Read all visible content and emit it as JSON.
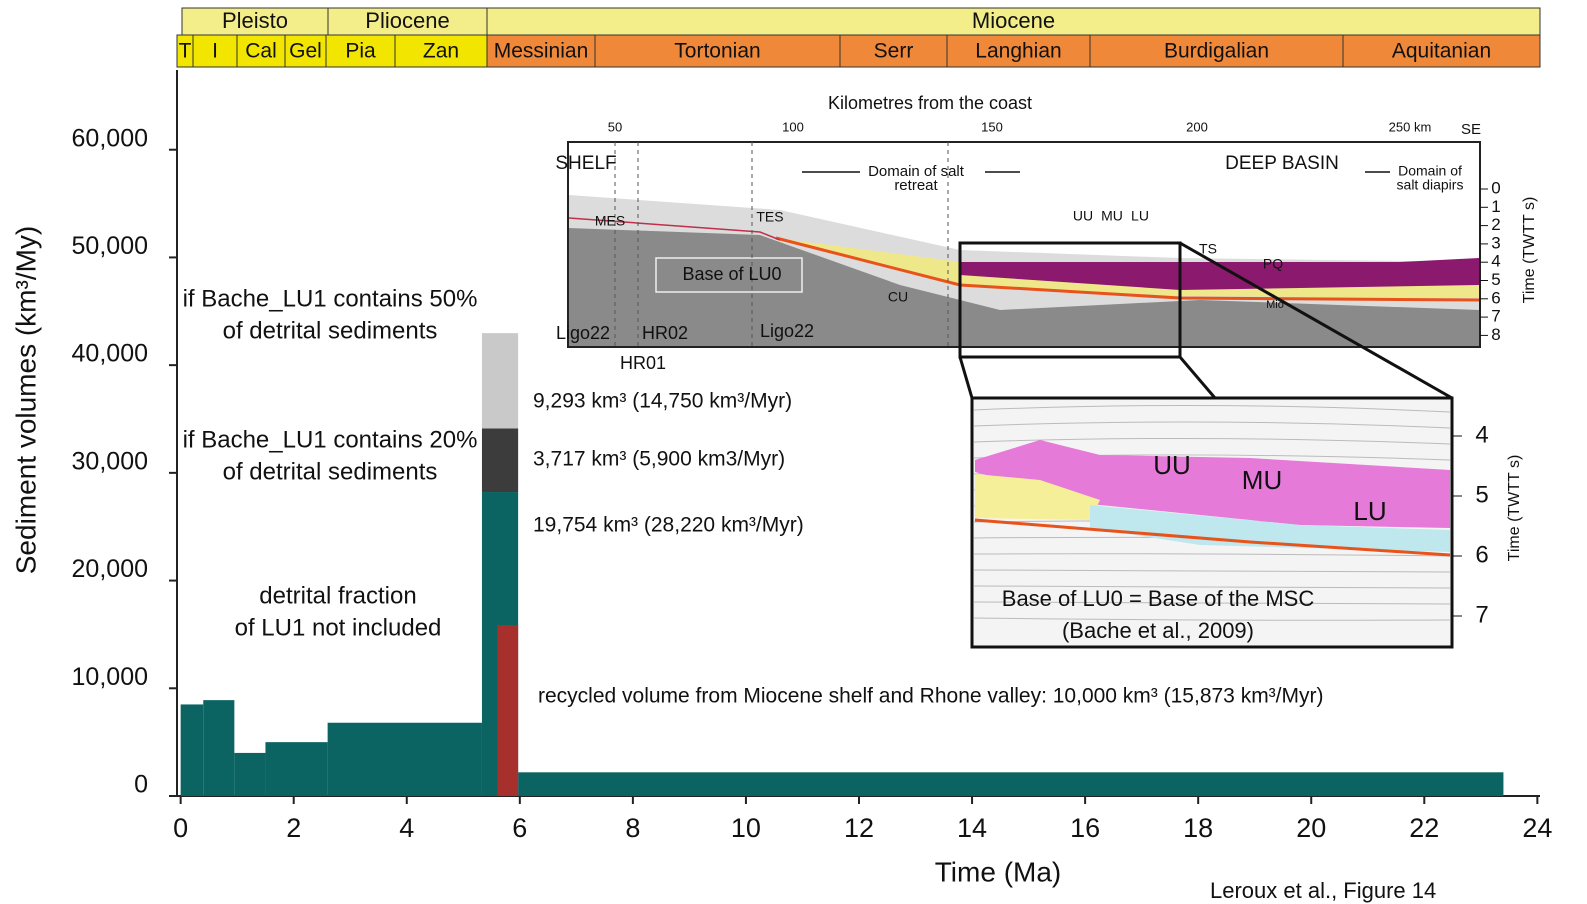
{
  "chart_data": {
    "type": "histogram",
    "x_label": "Time (Ma)",
    "y_label": "Sediment volumes (km³/My)",
    "bins": [
      0,
      0.4,
      0.95,
      1.5,
      2.6,
      5.33,
      5.97,
      23.4
    ],
    "values": [
      8500,
      8900,
      4000,
      5000,
      6800,
      28220,
      2200
    ],
    "color": "#0b6462",
    "upper_bins": [
      5.33,
      5.97
    ],
    "upper_values": [
      5900,
      8850
    ],
    "upper_colors": [
      "#3c3c3c",
      "#c9c9c9"
    ],
    "recycled_bins": [
      5.6,
      5.97
    ],
    "recycled_value": 15873,
    "recycled_color": "#a8302c",
    "xlim": [
      -0.1,
      24.1
    ],
    "xticks": [
      0,
      2,
      4,
      6,
      8,
      10,
      12,
      14,
      16,
      18,
      20,
      22,
      24
    ],
    "ylim": [
      0,
      67400
    ],
    "yticks": [
      0,
      {
        "value": 10000,
        "label": "10,000"
      },
      {
        "value": 20000,
        "label": "20,000"
      },
      {
        "value": 30000,
        "label": "30,000"
      },
      {
        "value": 40000,
        "label": "40,000"
      },
      {
        "value": 50000,
        "label": "50,000"
      },
      {
        "value": 60000,
        "label": "60,000"
      }
    ],
    "annotations": [
      {
        "lines": [
          "if Bache_LU1 contains 50%",
          "of detrital sediments"
        ],
        "color": "#9a9a9a"
      },
      {
        "lines": [
          "if Bache_LU1 contains 20%",
          "of detrital sediments"
        ],
        "color": "#333333"
      },
      {
        "lines": [
          "detrital fraction",
          "of LU1 not included"
        ],
        "color": "#222222"
      },
      {
        "lines": [
          "9,293 km³ (14,750 km³/Myr)"
        ],
        "color": "#a8a8a8"
      },
      {
        "lines": [
          "3,717 km³ (5,900 km3/Myr)"
        ],
        "color": "#444444"
      },
      {
        "lines": [
          "19,754 km³ (28,220 km³/Myr)"
        ],
        "color": "#0b6462"
      },
      {
        "lines": [
          "recycled volume from Miocene shelf and Rhone valley: 10,000 km³ (15,873 km³/Myr)"
        ],
        "color": "#b0302c"
      }
    ],
    "footer": "Leroux et al., Figure 14"
  },
  "timescale": {
    "epochs": [
      "Pleisto",
      "Pliocene",
      "Miocene"
    ],
    "stages": [
      "T",
      "I",
      "Cal",
      "Gel",
      "Pia",
      "Zan",
      "Messinian",
      "Tortonian",
      "Serr",
      "Langhian",
      "Burdigalian",
      "Aquitanian"
    ]
  },
  "inset": {
    "labels": [
      "Kilometres from the coast",
      "50",
      "100",
      "150",
      "200",
      "250 km",
      "SE",
      "SHELF",
      "DEEP BASIN",
      "Domain of salt",
      "retreat",
      "Domain of",
      "salt diapirs",
      "MES",
      "TES",
      "UU",
      "MU",
      "LU",
      "TS",
      "PQ",
      "Base of LU0",
      "CU",
      "Mio",
      "Ligo22",
      "HR02",
      "HR01",
      "Ligo22",
      "Time (TWTT s)"
    ],
    "time_ticks": [
      0,
      1,
      2,
      3,
      4,
      5,
      6,
      7,
      8
    ],
    "zoom_labels": [
      "UU",
      "MU",
      "LU",
      "Base of LU0 = Base of the MSC",
      "(Bache et al., 2009)",
      "Time (TWTT s)"
    ],
    "zoom_ticks": [
      4,
      5,
      6,
      7
    ]
  }
}
